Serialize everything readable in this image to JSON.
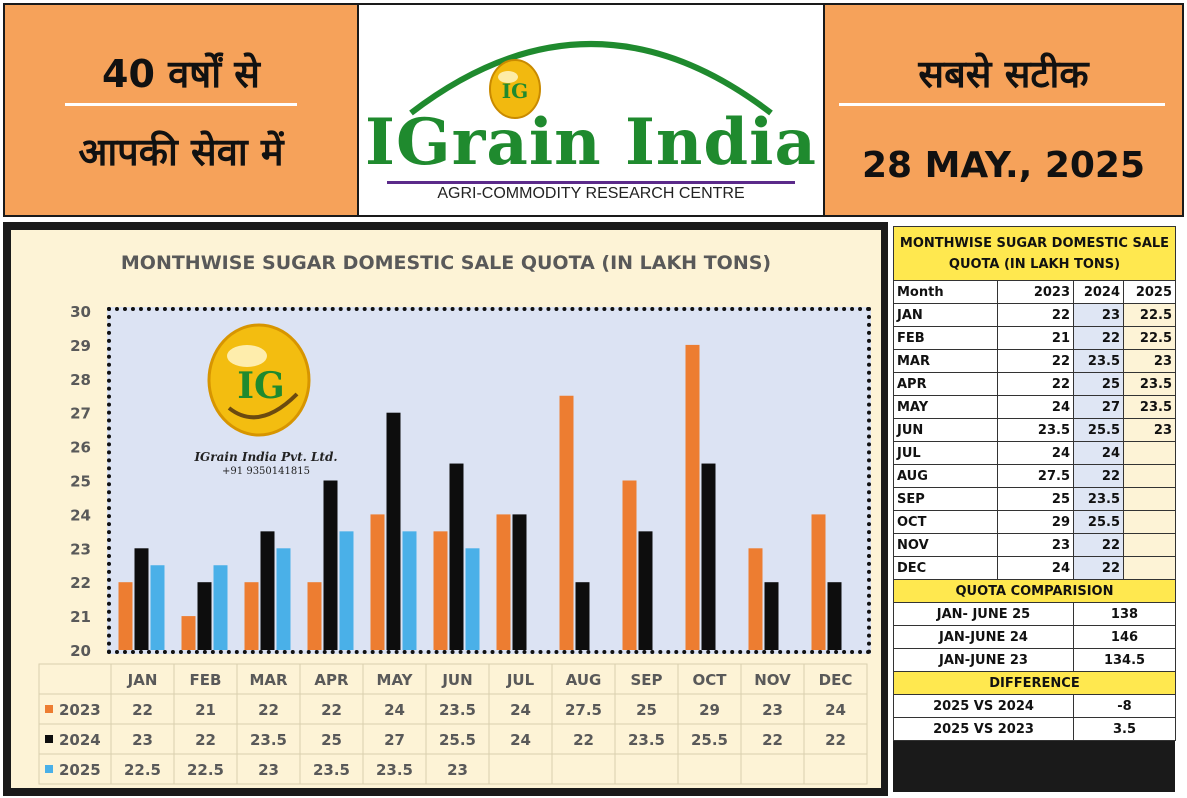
{
  "header": {
    "left_line1": "40 वर्षों से",
    "left_line2": "आपकी सेवा में",
    "right_line1": "सबसे सटीक",
    "date": "28 MAY., 2025",
    "logo_badge": "IG",
    "logo_title": "IGrain India",
    "logo_subtitle": "AGRI-COMMODITY RESEARCH CENTRE"
  },
  "watermark": {
    "badge": "IG",
    "company": "IGrain India Pvt. Ltd.",
    "phone": "+91 9350141815"
  },
  "colors": {
    "s2023": "#ed7d31",
    "s2024": "#0d0d0d",
    "s2025": "#4ab0e8",
    "header_orange": "#f6a25a",
    "logo_green": "#1f8a2e",
    "table_yellow": "#ffe84f"
  },
  "chart_data": {
    "type": "bar",
    "title": "MONTHWISE SUGAR DOMESTIC SALE QUOTA (IN LAKH TONS)",
    "categories": [
      "JAN",
      "FEB",
      "MAR",
      "APR",
      "MAY",
      "JUN",
      "JUL",
      "AUG",
      "SEP",
      "OCT",
      "NOV",
      "DEC"
    ],
    "series": [
      {
        "name": "2023",
        "values": [
          22,
          21,
          22,
          22,
          24,
          23.5,
          24,
          27.5,
          25,
          29,
          23,
          24
        ]
      },
      {
        "name": "2024",
        "values": [
          23,
          22,
          23.5,
          25,
          27,
          25.5,
          24,
          22,
          23.5,
          25.5,
          22,
          22
        ]
      },
      {
        "name": "2025",
        "values": [
          22.5,
          22.5,
          23,
          23.5,
          23.5,
          23,
          null,
          null,
          null,
          null,
          null,
          null
        ]
      }
    ],
    "value_labels": {
      "2023": [
        "22",
        "21",
        "22",
        "22",
        "24",
        "23.5",
        "24",
        "27.5",
        "25",
        "29",
        "23",
        "24"
      ],
      "2024": [
        "23",
        "22",
        "23.5",
        "25",
        "27",
        "25.5",
        "24",
        "22",
        "23.5",
        "25.5",
        "22",
        "22"
      ],
      "2025": [
        "22.5",
        "22.5",
        "23",
        "23.5",
        "23.5",
        "23",
        "",
        "",
        "",
        "",
        "",
        ""
      ]
    },
    "ylim": [
      20,
      30
    ],
    "yticks": [
      "20",
      "21",
      "22",
      "23",
      "24",
      "25",
      "26",
      "27",
      "28",
      "29",
      "30"
    ],
    "xlabel": "",
    "ylabel": "",
    "legend": "data-table-left",
    "grid": false
  },
  "table": {
    "title": "MONTHWISE SUGAR DOMESTIC SALE QUOTA (IN LAKH TONS)",
    "header": [
      "Month",
      "2023",
      "2024",
      "2025"
    ],
    "rows": [
      [
        "JAN",
        "22",
        "23",
        "22.5"
      ],
      [
        "FEB",
        "21",
        "22",
        "22.5"
      ],
      [
        "MAR",
        "22",
        "23.5",
        "23"
      ],
      [
        "APR",
        "22",
        "25",
        "23.5"
      ],
      [
        "MAY",
        "24",
        "27",
        "23.5"
      ],
      [
        "JUN",
        "23.5",
        "25.5",
        "23"
      ],
      [
        "JUL",
        "24",
        "24",
        ""
      ],
      [
        "AUG",
        "27.5",
        "22",
        ""
      ],
      [
        "SEP",
        "25",
        "23.5",
        ""
      ],
      [
        "OCT",
        "29",
        "25.5",
        ""
      ],
      [
        "NOV",
        "23",
        "22",
        ""
      ],
      [
        "DEC",
        "24",
        "22",
        ""
      ]
    ],
    "comparison_title": "QUOTA COMPARISION",
    "comparison": [
      [
        "JAN- JUNE 25",
        "138"
      ],
      [
        "JAN-JUNE 24",
        "146"
      ],
      [
        "JAN-JUNE 23",
        "134.5"
      ]
    ],
    "difference_title": "DIFFERENCE",
    "difference": [
      [
        "2025 VS 2024",
        "-8"
      ],
      [
        "2025 VS 2023",
        "3.5"
      ]
    ]
  }
}
